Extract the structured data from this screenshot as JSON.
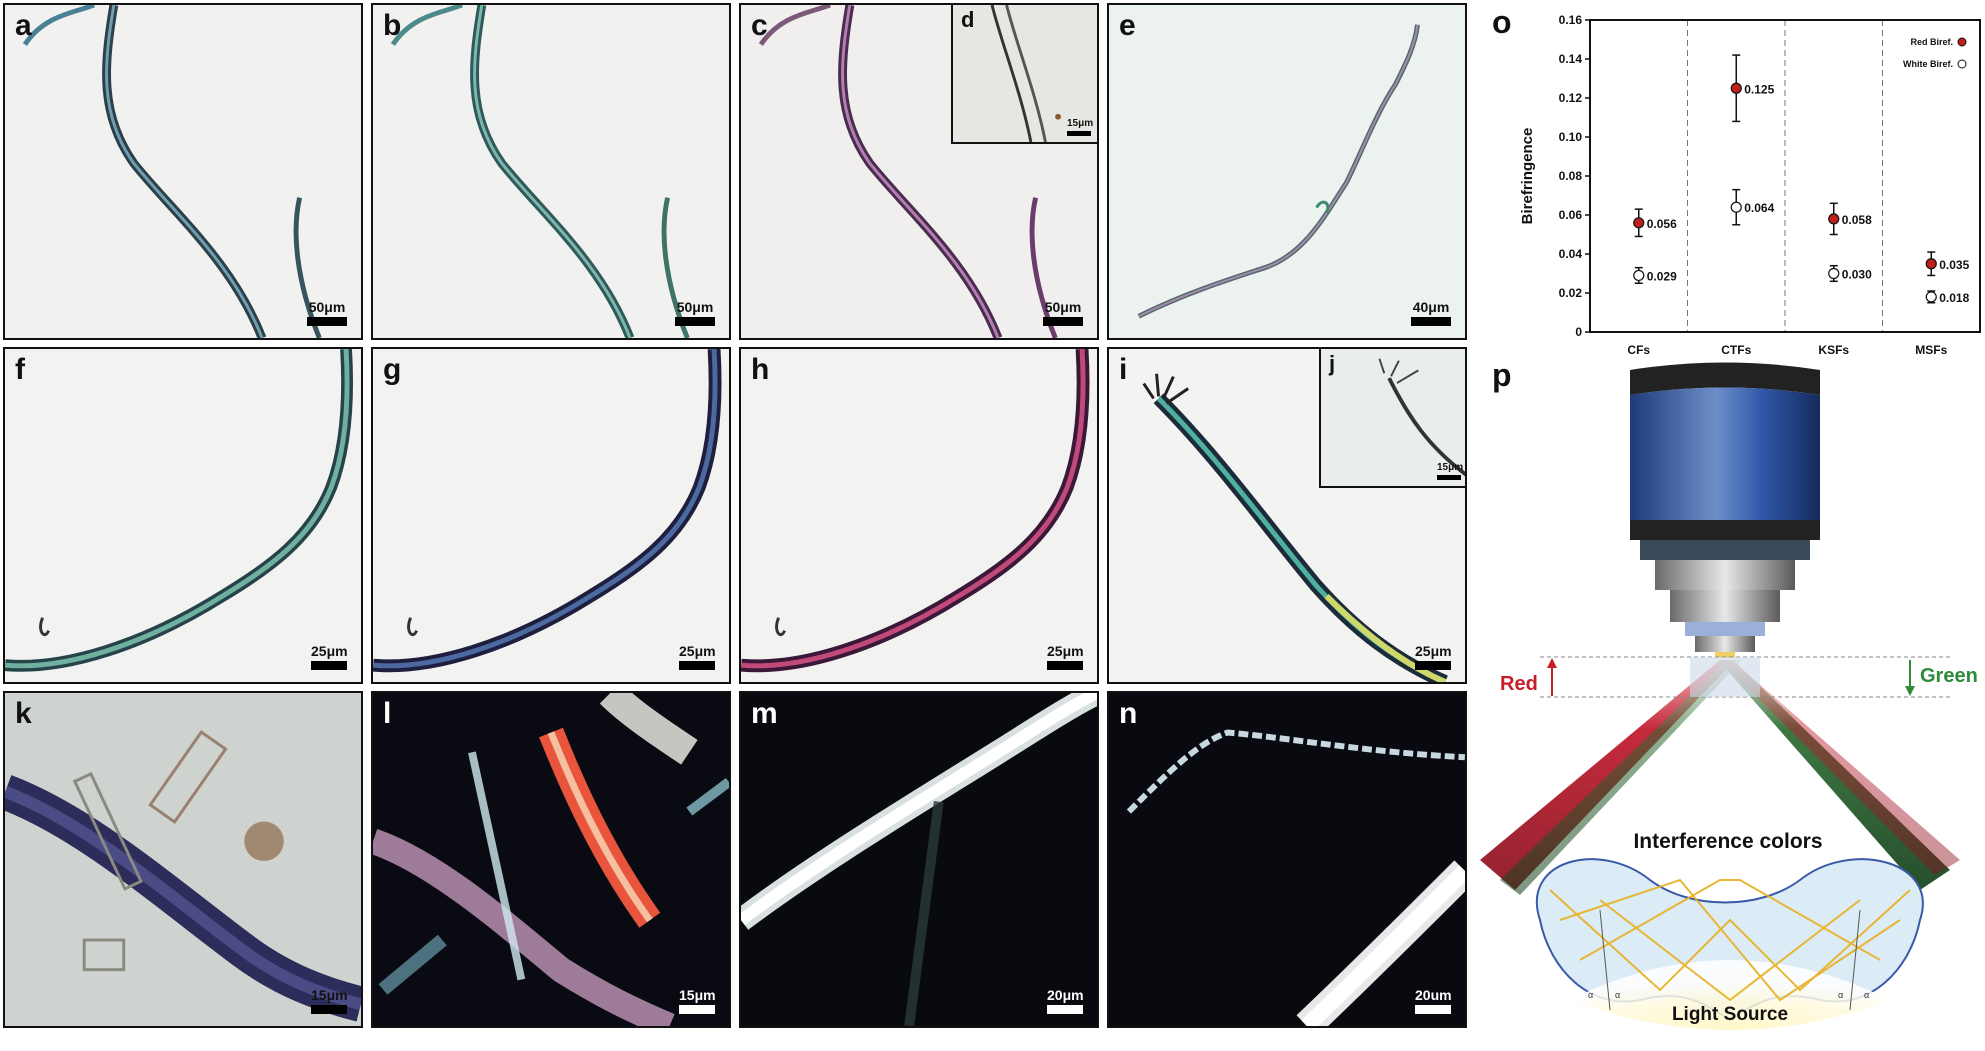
{
  "panels": {
    "a": {
      "label": "a",
      "scale": "50μm"
    },
    "b": {
      "label": "b",
      "scale": "50μm"
    },
    "c": {
      "label": "c",
      "scale": "50μm"
    },
    "d": {
      "label": "d",
      "scale": "15μm"
    },
    "e": {
      "label": "e",
      "scale": "40μm"
    },
    "f": {
      "label": "f",
      "scale": "25μm"
    },
    "g": {
      "label": "g",
      "scale": "25μm"
    },
    "h": {
      "label": "h",
      "scale": "25μm"
    },
    "i": {
      "label": "i",
      "scale": "25μm"
    },
    "j": {
      "label": "j",
      "scale": "15μm"
    },
    "k": {
      "label": "k",
      "scale": "15μm"
    },
    "l": {
      "label": "l",
      "scale": "15μm"
    },
    "m": {
      "label": "m",
      "scale": "20μm"
    },
    "n": {
      "label": "n",
      "scale": "20um"
    },
    "o": {
      "label": "o"
    },
    "p": {
      "label": "p"
    }
  },
  "chart_data": {
    "type": "scatter",
    "ylabel": "Birefringence",
    "ylim": [
      0,
      0.16
    ],
    "yticks": [
      "0",
      "0.02",
      "0.04",
      "0.06",
      "0.08",
      "0.10",
      "0.12",
      "0.14",
      "0.16"
    ],
    "categories": [
      "CFs",
      "CTFs",
      "KSFs",
      "MSFs"
    ],
    "legend_position": "top-right",
    "series": [
      {
        "name": "Red Biref.",
        "color": "#c0201c",
        "values": [
          0.056,
          0.125,
          0.058,
          0.035
        ],
        "value_labels": [
          "0.056",
          "0.125",
          "0.058",
          "0.035"
        ],
        "errors": [
          0.007,
          0.017,
          0.008,
          0.006
        ]
      },
      {
        "name": "White Biref.",
        "color": "#ffffff",
        "values": [
          0.029,
          0.064,
          0.03,
          0.018
        ],
        "value_labels": [
          "0.029",
          "0.064",
          "0.030",
          "0.018"
        ],
        "errors": [
          0.004,
          0.009,
          0.004,
          0.003
        ]
      }
    ]
  },
  "diagram": {
    "red_label": "Red",
    "green_label": "Green",
    "interference_label": "Interference colors",
    "light_label": "Light Source",
    "alpha": "α"
  }
}
